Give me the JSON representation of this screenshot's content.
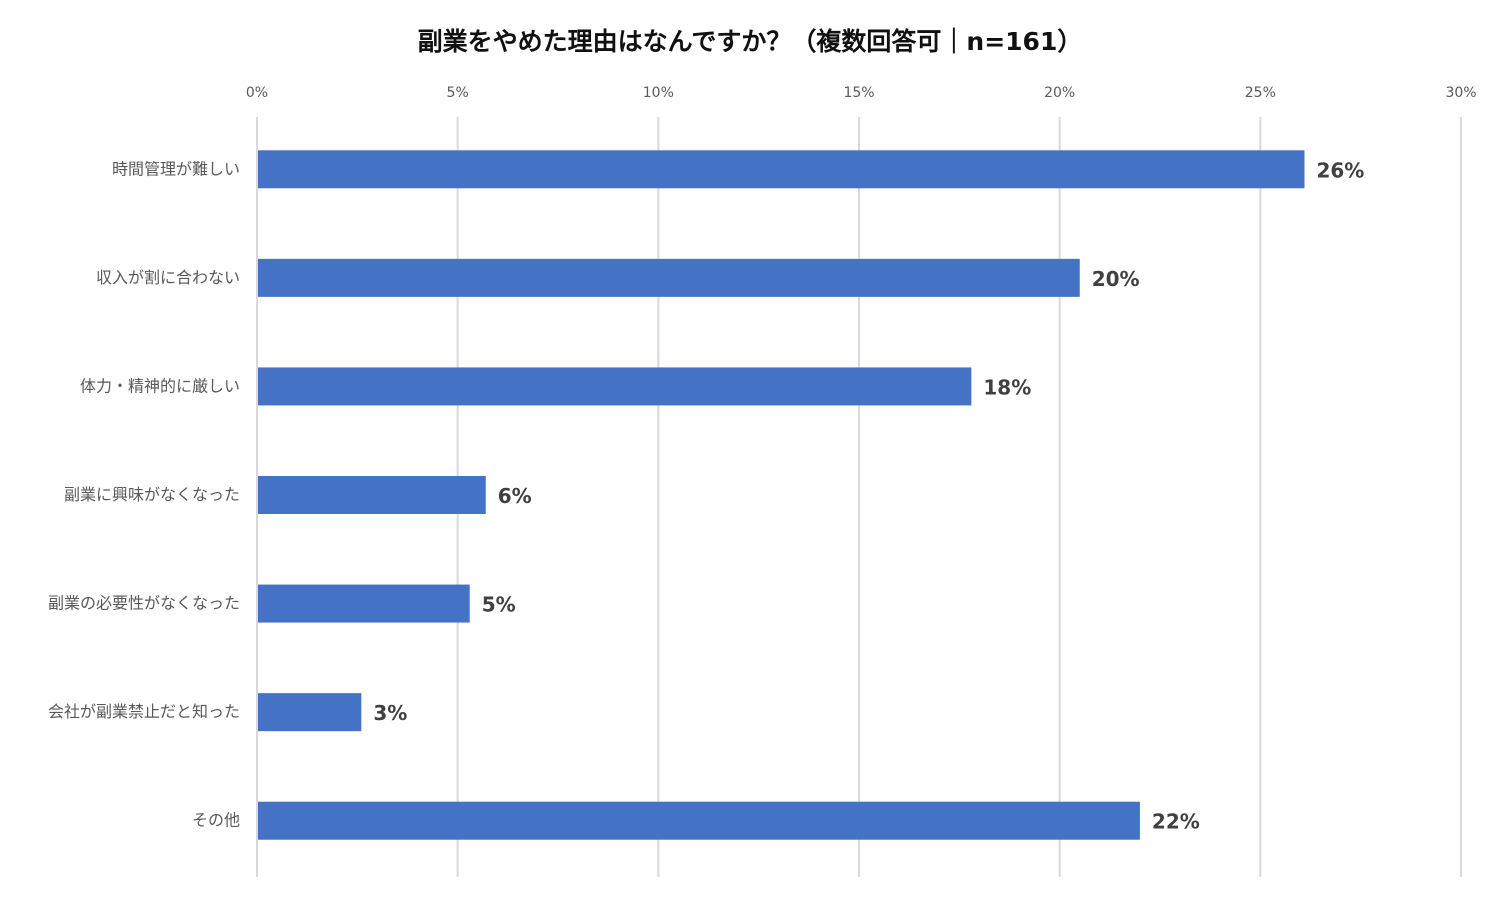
{
  "chart_data": {
    "type": "bar",
    "orientation": "horizontal",
    "title": "副業をやめた理由はなんですか？（複数回答可｜n=161）",
    "xlabel": "",
    "ylabel": "",
    "xlim": [
      0,
      30
    ],
    "x_ticks": [
      "0%",
      "5%",
      "10%",
      "15%",
      "20%",
      "25%",
      "30%"
    ],
    "x_tick_values": [
      0,
      5,
      10,
      15,
      20,
      25,
      30
    ],
    "x_axis_position": "top",
    "grid": true,
    "legend": "none",
    "bar_color": "#4472C4",
    "categories": [
      "時間管理が難しい",
      "収入が割に合わない",
      "体力・精神的に厳しい",
      "副業に興味がなくなった",
      "副業の必要性がなくなった",
      "会社が副業禁止だと知った",
      "その他"
    ],
    "values": [
      26.1,
      20.5,
      17.8,
      5.7,
      5.3,
      2.6,
      22.0
    ],
    "data_labels": [
      "26%",
      "20%",
      "18%",
      "6%",
      "5%",
      "3%",
      "22%"
    ]
  }
}
